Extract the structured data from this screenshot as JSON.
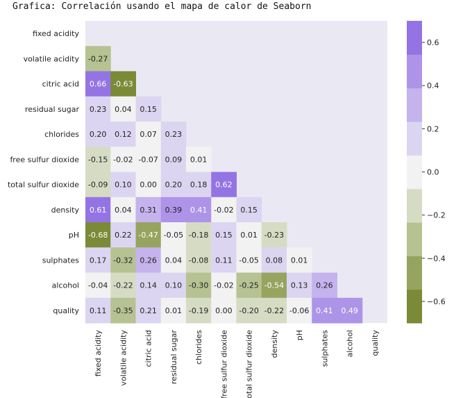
{
  "title": "Grafica: Correlación usando el mapa de calor de Seaborn",
  "chart_data": {
    "type": "heatmap",
    "labels": [
      "fixed acidity",
      "volatile acidity",
      "citric acid",
      "residual sugar",
      "chlorides",
      "free sulfur dioxide",
      "total sulfur dioxide",
      "density",
      "pH",
      "sulphates",
      "alcohol",
      "quality"
    ],
    "rows": [
      [],
      [
        -0.27
      ],
      [
        0.66,
        -0.63
      ],
      [
        0.23,
        0.04,
        0.15
      ],
      [
        0.2,
        0.12,
        0.07,
        0.23
      ],
      [
        -0.15,
        -0.02,
        -0.07,
        0.09,
        0.01
      ],
      [
        -0.09,
        0.1,
        0.0,
        0.2,
        0.18,
        0.62
      ],
      [
        0.61,
        0.04,
        0.31,
        0.39,
        0.41,
        -0.02,
        0.15
      ],
      [
        -0.68,
        0.22,
        -0.47,
        -0.05,
        -0.18,
        0.15,
        0.01,
        -0.23
      ],
      [
        0.17,
        -0.32,
        0.26,
        0.04,
        -0.08,
        0.11,
        -0.05,
        0.08,
        0.01
      ],
      [
        -0.04,
        -0.22,
        0.14,
        0.1,
        -0.3,
        -0.02,
        -0.25,
        -0.54,
        0.13,
        0.26
      ],
      [
        0.11,
        -0.35,
        0.21,
        0.01,
        -0.19,
        -0.0,
        -0.2,
        -0.22,
        -0.06,
        0.41,
        0.49
      ]
    ],
    "colorbar": {
      "range": [
        -0.7,
        0.7
      ],
      "ticks": [
        0.6,
        0.4,
        0.2,
        0.0,
        -0.2,
        -0.4,
        -0.6
      ],
      "tick_labels": [
        "0.6",
        "0.4",
        "0.2",
        "0.0",
        "−0.2",
        "−0.4",
        "−0.6"
      ],
      "colors": [
        "#7b8a37",
        "#96a460",
        "#b6c291",
        "#d6dcc4",
        "#f2f2f2",
        "#dcd5f1",
        "#c4b3ec",
        "#ad94e8",
        "#9474e4"
      ]
    },
    "colors": {
      "masked_background": "#eae9f3"
    }
  }
}
